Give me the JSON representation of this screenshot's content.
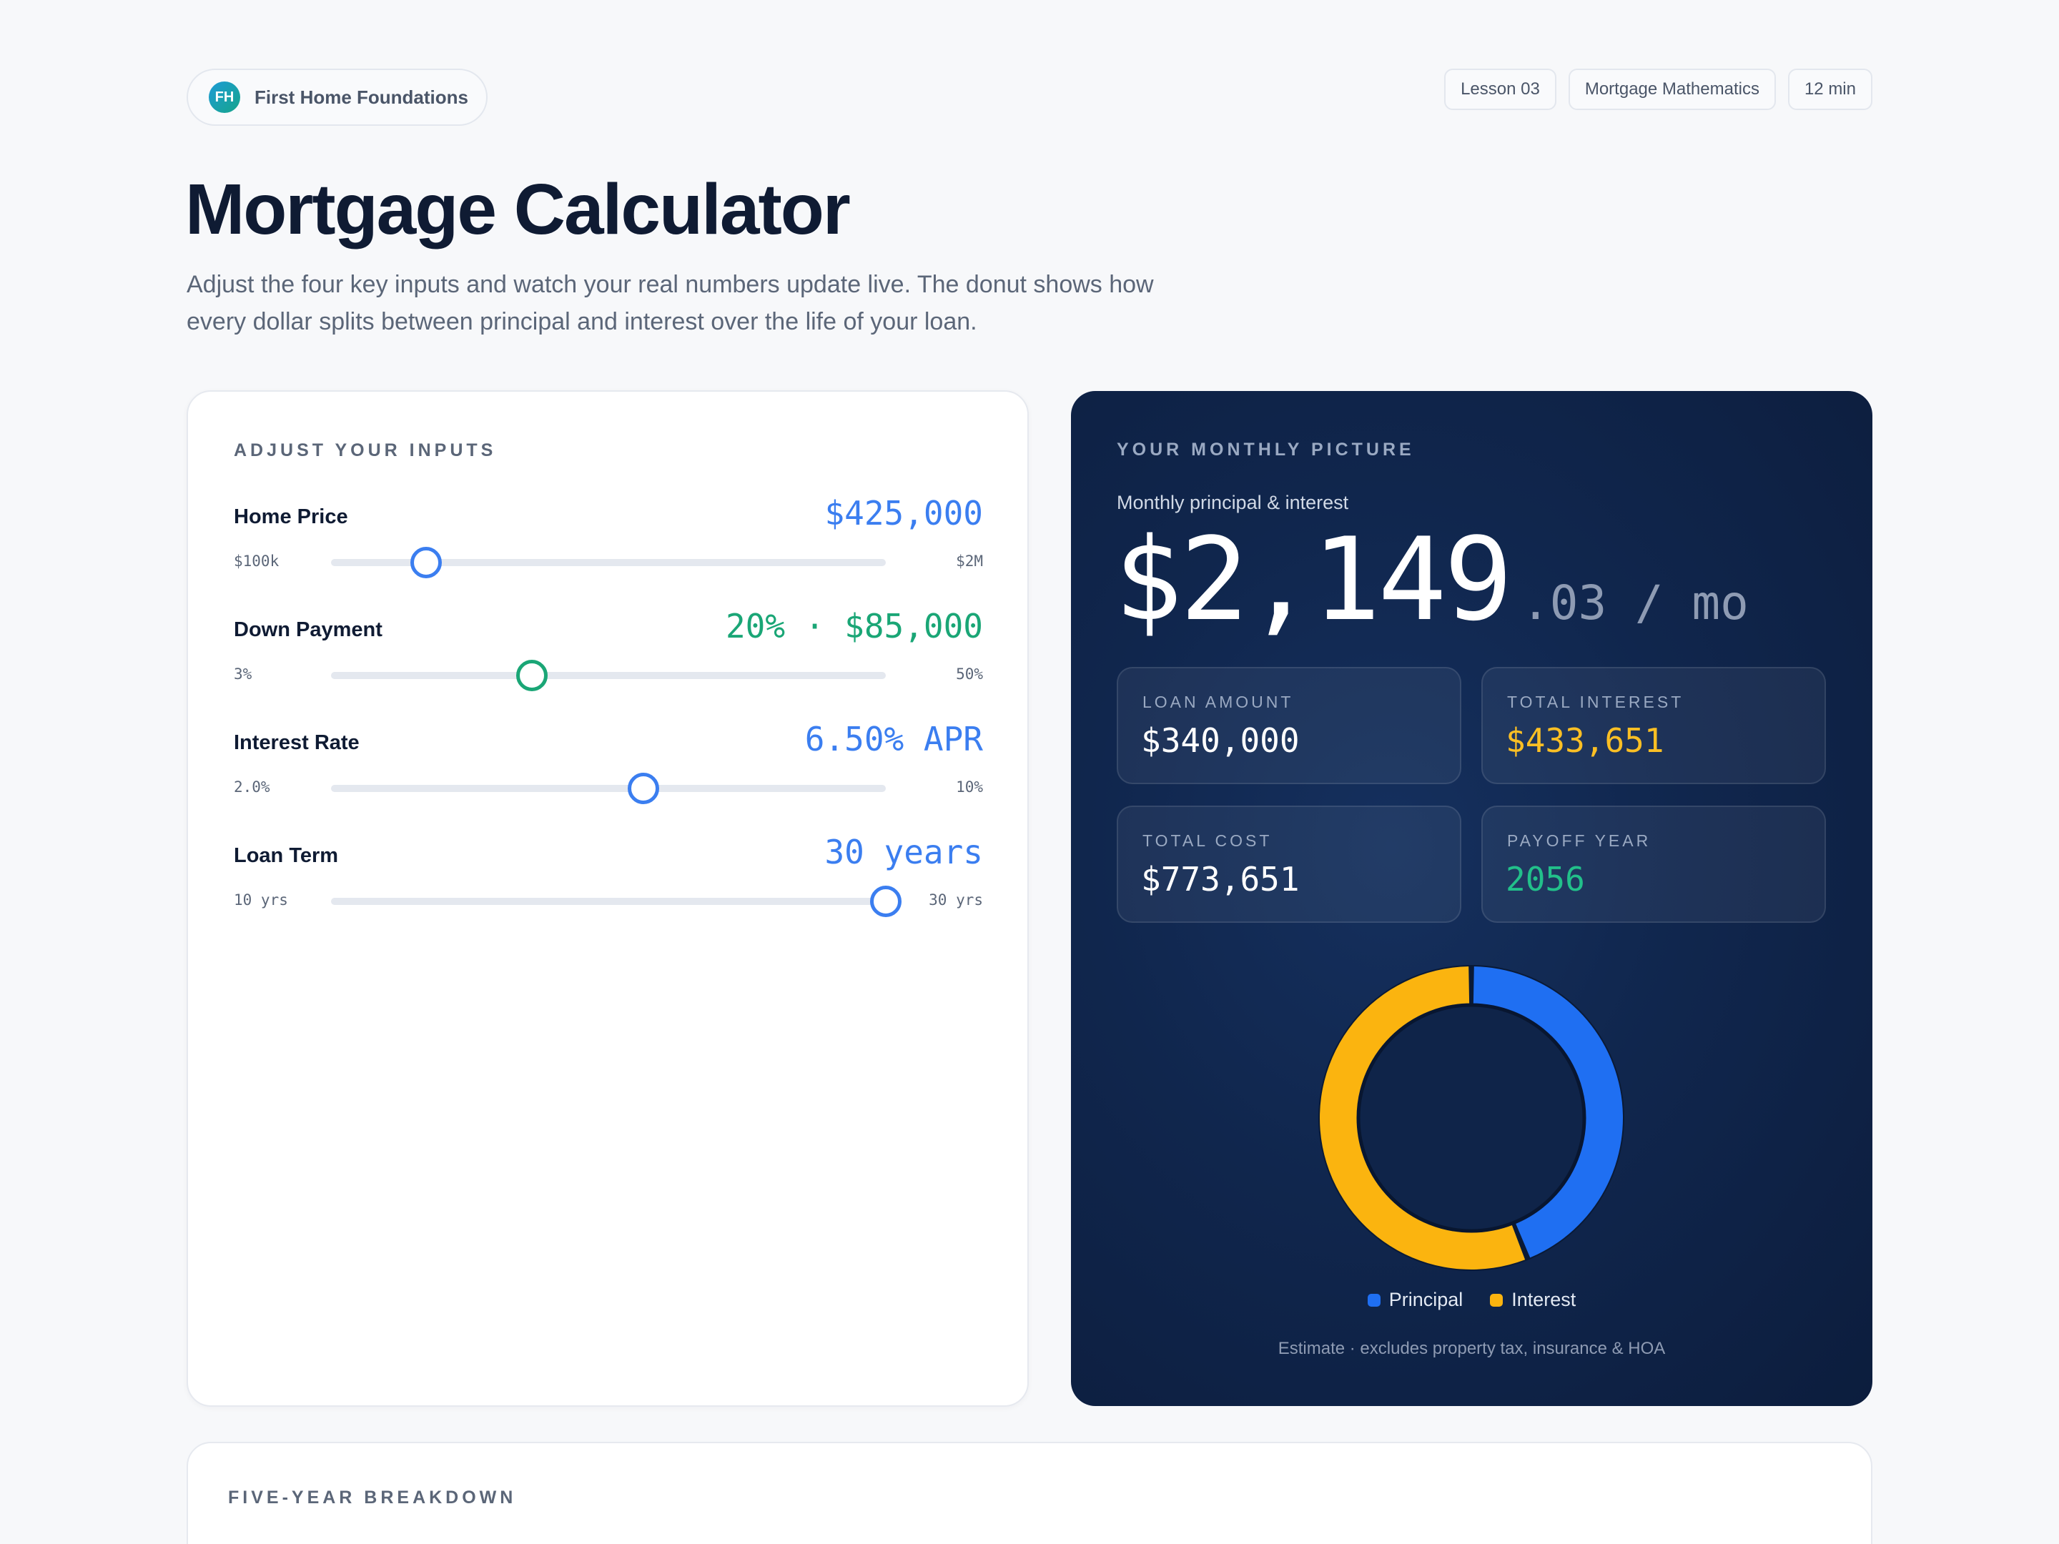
{
  "header": {
    "brand_logo": "FH",
    "brand_name": "First Home Foundations",
    "meta": [
      "Lesson 03",
      "Mortgage Mathematics",
      "12 min"
    ]
  },
  "page": {
    "title": "Mortgage Calculator",
    "description": "Adjust the four key inputs and watch your real numbers update live. The donut shows how every dollar splits between principal and interest over the life of your loan."
  },
  "inputs": {
    "section_label": "ADJUST YOUR INPUTS",
    "controls": [
      {
        "label": "Home Price",
        "value": "$425,000",
        "min": "$100k",
        "max": "$2M",
        "fraction": 0.171,
        "color": "#3b7ef0"
      },
      {
        "label": "Down Payment",
        "value": "20% · $85,000",
        "min": "3%",
        "max": "50%",
        "fraction": 0.362,
        "color": "#1aa676"
      },
      {
        "label": "Interest Rate",
        "value": "6.50% APR",
        "min": "2.0%",
        "max": "10%",
        "fraction": 0.5625,
        "color": "#3b7ef0"
      },
      {
        "label": "Loan Term",
        "value": "30 years",
        "min": "10 yrs",
        "max": "30 yrs",
        "fraction": 1.0,
        "color": "#3b7ef0"
      }
    ]
  },
  "summary": {
    "section_label": "YOUR MONTHLY PICTURE",
    "monthly_caption": "Monthly principal & interest",
    "monthly_main": "$2,149",
    "monthly_sub": ".03 / mo",
    "stats": [
      {
        "label": "LOAN AMOUNT",
        "value": "$340,000"
      },
      {
        "label": "TOTAL INTEREST",
        "value": "$433,651"
      },
      {
        "label": "TOTAL COST",
        "value": "$773,651"
      },
      {
        "label": "PAYOFF YEAR",
        "value": "2056"
      }
    ],
    "donut": {
      "principal": 340000,
      "interest": 433651,
      "principal_color": "#1f6ff2",
      "interest_color": "#fbb40f"
    },
    "legend": [
      "Principal",
      "Interest"
    ],
    "disclaimer": "Estimate · excludes property tax, insurance & HOA"
  },
  "breakdown": {
    "section_label": "FIVE-YEAR BREAKDOWN"
  }
}
